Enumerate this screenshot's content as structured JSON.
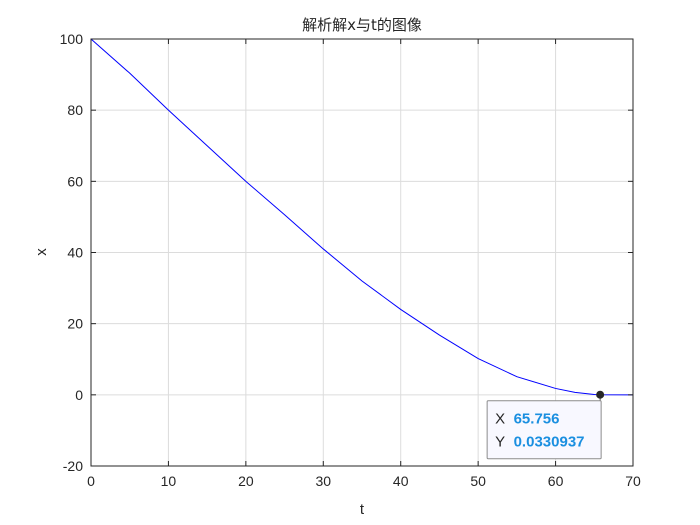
{
  "chart_data": {
    "type": "line",
    "title": "解析解x与t的图像",
    "xlabel": "t",
    "ylabel": "x",
    "xlim": [
      0,
      70
    ],
    "ylim": [
      -20,
      100
    ],
    "xticks": [
      0,
      10,
      20,
      30,
      40,
      50,
      60,
      70
    ],
    "yticks": [
      -20,
      0,
      20,
      40,
      60,
      80,
      100
    ],
    "grid": true,
    "series": [
      {
        "color": "#0000ff",
        "x": [
          0,
          5,
          10,
          15,
          20,
          25,
          30,
          35,
          40,
          45,
          50,
          55,
          60,
          62.5,
          65,
          65.756,
          70
        ],
        "y": [
          100,
          90.4,
          80.0,
          70.0,
          60.0,
          50.6,
          41.0,
          32.0,
          24.0,
          16.8,
          10.2,
          5.1,
          1.8,
          0.7,
          0.1,
          0.0330937,
          0
        ]
      }
    ],
    "datatip": {
      "x_key": "X",
      "y_key": "Y",
      "x_value": "65.756",
      "y_value": "0.0330937",
      "point": [
        65.756,
        0.0330937
      ]
    }
  }
}
